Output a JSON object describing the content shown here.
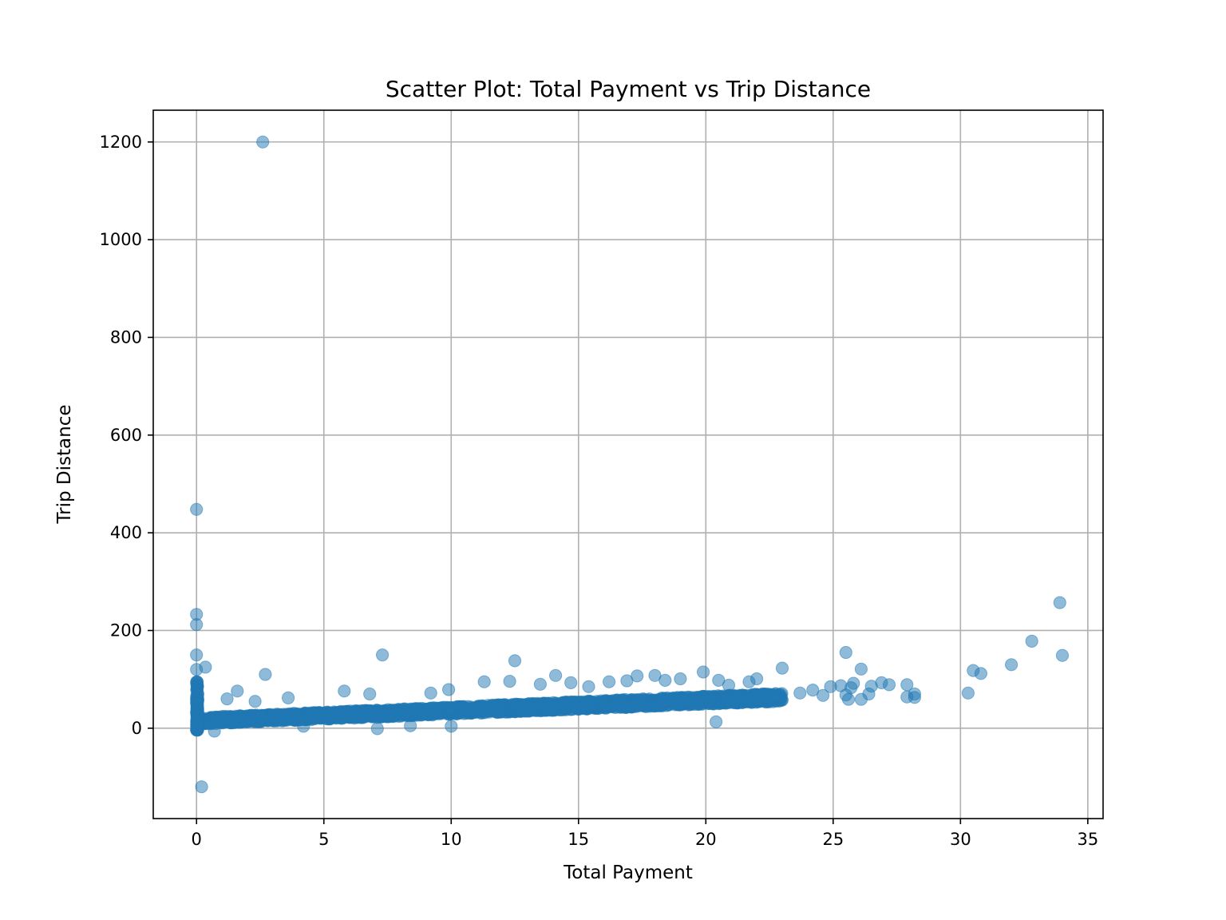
{
  "chart_data": {
    "type": "scatter",
    "title": "Scatter Plot: Total Payment vs Trip Distance",
    "xlabel": "Total Payment",
    "ylabel": "Trip Distance",
    "xlim": [
      -1.7,
      35.6
    ],
    "ylim": [
      -185,
      1265
    ],
    "xticks": [
      0,
      5,
      10,
      15,
      20,
      25,
      30,
      35
    ],
    "yticks": [
      0,
      200,
      400,
      600,
      800,
      1000,
      1200
    ],
    "grid": true,
    "legend": "none",
    "marker_color": "#1f77b4",
    "marker_alpha": 0.5,
    "series": [
      {
        "points": [
          [
            2.6,
            1200
          ],
          [
            0,
            448
          ],
          [
            0,
            233
          ],
          [
            0,
            212
          ],
          [
            0,
            150
          ],
          [
            0,
            120
          ],
          [
            0.35,
            125
          ],
          [
            0.2,
            -120
          ],
          [
            2.7,
            110
          ],
          [
            7.3,
            150
          ],
          [
            12.5,
            138
          ],
          [
            14.1,
            108
          ],
          [
            19.9,
            115
          ],
          [
            23.0,
            123
          ],
          [
            25.5,
            155
          ],
          [
            26.1,
            121
          ],
          [
            30.5,
            118
          ],
          [
            30.8,
            112
          ],
          [
            32.0,
            130
          ],
          [
            32.8,
            178
          ],
          [
            33.9,
            257
          ],
          [
            34.0,
            149
          ],
          [
            30.3,
            72
          ],
          [
            28.2,
            70
          ],
          [
            28.2,
            63
          ],
          [
            27.9,
            89
          ],
          [
            27.9,
            64
          ],
          [
            27.2,
            89
          ],
          [
            26.9,
            93
          ],
          [
            26.5,
            86
          ],
          [
            26.4,
            70
          ],
          [
            26.1,
            59
          ],
          [
            25.8,
            92
          ],
          [
            25.7,
            83
          ],
          [
            25.6,
            59
          ],
          [
            25.5,
            68
          ],
          [
            25.3,
            87
          ],
          [
            24.9,
            85
          ],
          [
            24.6,
            67
          ],
          [
            24.2,
            78
          ],
          [
            23.7,
            72
          ],
          [
            20.4,
            13
          ],
          [
            10.0,
            4
          ],
          [
            8.4,
            5
          ],
          [
            7.1,
            -1
          ],
          [
            4.2,
            4
          ],
          [
            0.7,
            -6
          ],
          [
            1.6,
            76
          ],
          [
            1.2,
            60
          ],
          [
            2.3,
            55
          ],
          [
            5.8,
            76
          ],
          [
            9.2,
            72
          ],
          [
            11.3,
            95
          ],
          [
            12.3,
            96
          ],
          [
            13.5,
            90
          ],
          [
            14.7,
            93
          ],
          [
            16.2,
            95
          ],
          [
            17.3,
            107
          ],
          [
            18.0,
            108
          ],
          [
            19.0,
            101
          ],
          [
            20.5,
            98
          ],
          [
            21.7,
            95
          ],
          [
            22.0,
            101
          ],
          [
            3.6,
            62
          ],
          [
            6.8,
            70
          ],
          [
            9.9,
            79
          ],
          [
            15.4,
            85
          ],
          [
            16.9,
            97
          ],
          [
            18.4,
            98
          ],
          [
            20.9,
            88
          ]
        ],
        "band": {
          "x_start": 0,
          "x_end": 23,
          "y_low_start": 8,
          "y_low_end": 55,
          "y_high_start": 22,
          "y_high_end": 72,
          "count": 2400
        },
        "cluster_at_zero": {
          "x": 0,
          "y_low": -4,
          "y_high": 95,
          "count": 120
        }
      }
    ]
  }
}
